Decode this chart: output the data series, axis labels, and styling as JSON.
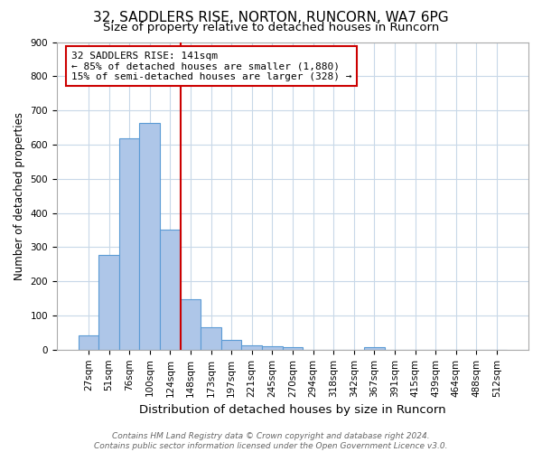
{
  "title": "32, SADDLERS RISE, NORTON, RUNCORN, WA7 6PG",
  "subtitle": "Size of property relative to detached houses in Runcorn",
  "xlabel": "Distribution of detached houses by size in Runcorn",
  "ylabel": "Number of detached properties",
  "categories": [
    "27sqm",
    "51sqm",
    "76sqm",
    "100sqm",
    "124sqm",
    "148sqm",
    "173sqm",
    "197sqm",
    "221sqm",
    "245sqm",
    "270sqm",
    "294sqm",
    "318sqm",
    "342sqm",
    "367sqm",
    "391sqm",
    "415sqm",
    "439sqm",
    "464sqm",
    "488sqm",
    "512sqm"
  ],
  "values": [
    42,
    277,
    619,
    664,
    350,
    148,
    65,
    28,
    12,
    11,
    8,
    0,
    0,
    0,
    8,
    0,
    0,
    0,
    0,
    0,
    0
  ],
  "bar_color": "#aec6e8",
  "bar_edgecolor": "#5b9bd5",
  "bar_linewidth": 0.8,
  "vline_color": "#cc0000",
  "vline_x": 4.5,
  "annotation_text": "32 SADDLERS RISE: 141sqm\n← 85% of detached houses are smaller (1,880)\n15% of semi-detached houses are larger (328) →",
  "annotation_box_edgecolor": "#cc0000",
  "annotation_box_facecolor": "#ffffff",
  "ylim": [
    0,
    900
  ],
  "yticks": [
    0,
    100,
    200,
    300,
    400,
    500,
    600,
    700,
    800,
    900
  ],
  "footer": "Contains HM Land Registry data © Crown copyright and database right 2024.\nContains public sector information licensed under the Open Government Licence v3.0.",
  "background_color": "#ffffff",
  "grid_color": "#c8d8e8",
  "title_fontsize": 11,
  "subtitle_fontsize": 9.5,
  "xlabel_fontsize": 9.5,
  "ylabel_fontsize": 8.5,
  "tick_fontsize": 7.5,
  "annotation_fontsize": 8,
  "footer_fontsize": 6.5
}
